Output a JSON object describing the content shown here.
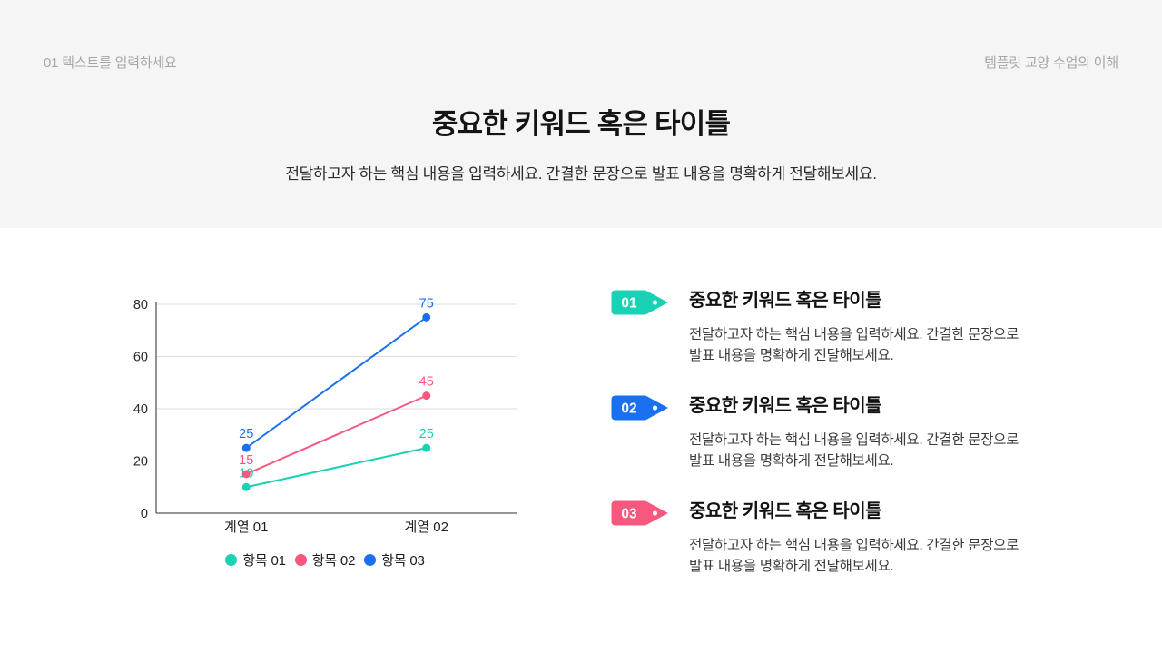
{
  "header": {
    "left_label": "01 텍스트를 입력하세요",
    "right_label": "템플릿 교양 수업의 이해",
    "title": "중요한 키워드 혹은 타이틀",
    "subtitle": "전달하고자 하는 핵심 내용을 입력하세요. 간결한 문장으로 발표 내용을 명확하게 전달해보세요.",
    "background": "#F5F5F6"
  },
  "colors": {
    "teal": "#19D1B4",
    "pink": "#F8587D",
    "blue": "#1B70F1",
    "grid": "#DCDCDE",
    "axis": "#57575A"
  },
  "chart_data": {
    "type": "line",
    "categories": [
      "계열 01",
      "계열 02"
    ],
    "series": [
      {
        "name": "항목 01",
        "color_key": "teal",
        "values": [
          10,
          25
        ]
      },
      {
        "name": "항목 02",
        "color_key": "pink",
        "values": [
          15,
          45
        ]
      },
      {
        "name": "항목 03",
        "color_key": "blue",
        "values": [
          25,
          75
        ]
      }
    ],
    "ylim": [
      0,
      80
    ],
    "yticks": [
      0,
      20,
      40,
      60,
      80
    ],
    "grid": true,
    "data_labels": true,
    "legend_position": "bottom"
  },
  "items": [
    {
      "number": "01",
      "color_key": "teal",
      "title": "중요한 키워드 혹은 타이틀",
      "description_lines": [
        "전달하고자 하는 핵심 내용을 입력하세요. 간결한 문장으로",
        "발표 내용을 명확하게 전달해보세요."
      ]
    },
    {
      "number": "02",
      "color_key": "blue",
      "title": "중요한 키워드 혹은 타이틀",
      "description_lines": [
        "전달하고자 하는 핵심 내용을 입력하세요. 간결한 문장으로",
        "발표 내용을 명확하게 전달해보세요."
      ]
    },
    {
      "number": "03",
      "color_key": "pink",
      "title": "중요한 키워드 혹은 타이틀",
      "description_lines": [
        "전달하고자 하는 핵심 내용을 입력하세요. 간결한 문장으로",
        "발표 내용을 명확하게 전달해보세요."
      ]
    }
  ]
}
